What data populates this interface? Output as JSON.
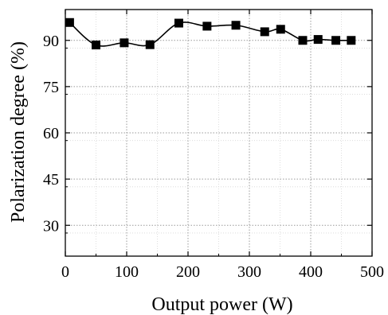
{
  "chart_data": {
    "type": "line",
    "xlabel": "Output power (W)",
    "ylabel": "Polarization degree (%)",
    "xlim": [
      0,
      500
    ],
    "ylim": [
      20,
      100
    ],
    "xticks": [
      0,
      100,
      200,
      300,
      400,
      500
    ],
    "yticks": [
      30,
      45,
      60,
      75,
      90
    ],
    "grid": true,
    "marker": "square",
    "line_color": "#000000",
    "marker_color": "#000000",
    "series": [
      {
        "x": [
          7,
          50,
          96,
          138,
          185,
          231,
          278,
          325,
          351,
          387,
          412,
          441,
          466
        ],
        "y": [
          95.8,
          88.5,
          89.2,
          88.6,
          95.6,
          94.6,
          94.9,
          92.8,
          93.6,
          90.0,
          90.3,
          90.0,
          90.0
        ]
      }
    ]
  }
}
